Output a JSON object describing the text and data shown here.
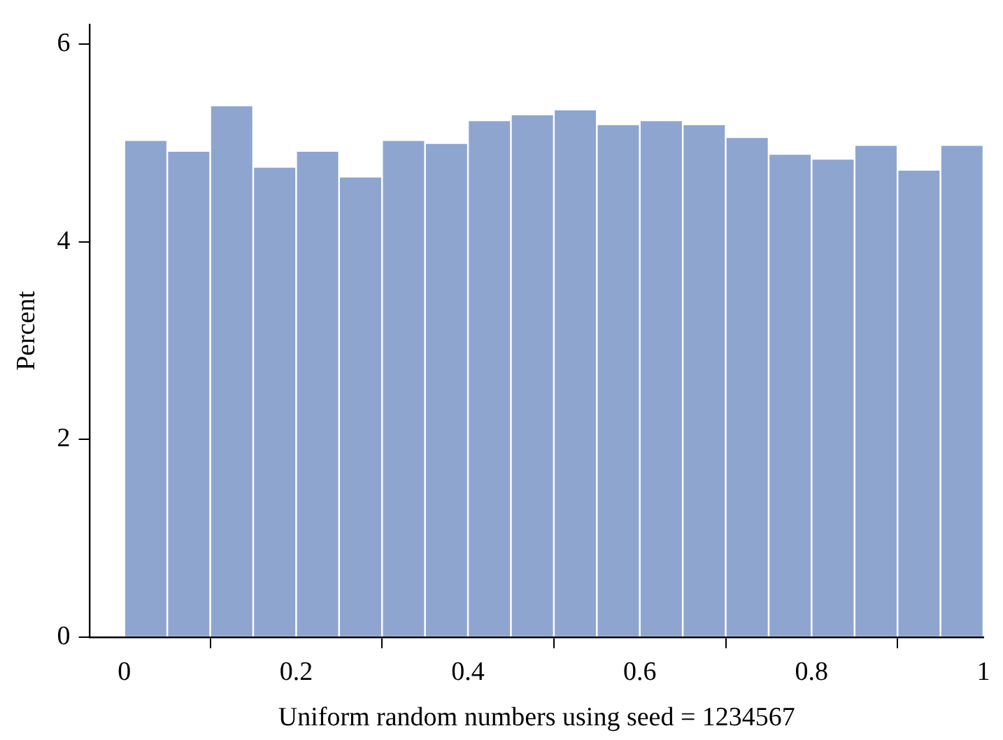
{
  "chart_data": {
    "type": "histogram",
    "xlabel": "Uniform random numbers using seed = 1234567",
    "ylabel": "Percent",
    "bins": [
      0,
      0.05,
      0.1,
      0.15,
      0.2,
      0.25,
      0.3,
      0.35,
      0.4,
      0.45,
      0.5,
      0.55,
      0.6,
      0.65,
      0.7,
      0.75,
      0.8,
      0.85,
      0.9,
      0.95,
      1
    ],
    "values": [
      5.02,
      4.91,
      5.37,
      4.75,
      4.91,
      4.65,
      5.02,
      4.99,
      5.22,
      5.28,
      5.33,
      5.18,
      5.22,
      5.18,
      5.05,
      4.88,
      4.83,
      4.97,
      4.72,
      4.97
    ],
    "color": "#8ea6cf",
    "xlim": [
      -0.04,
      1
    ],
    "ylim": [
      0,
      6.2
    ],
    "xticks": [
      0,
      0.2,
      0.4,
      0.6,
      0.8,
      1
    ],
    "yticks": [
      0,
      2,
      4,
      6
    ],
    "grid": false,
    "legend": false
  }
}
